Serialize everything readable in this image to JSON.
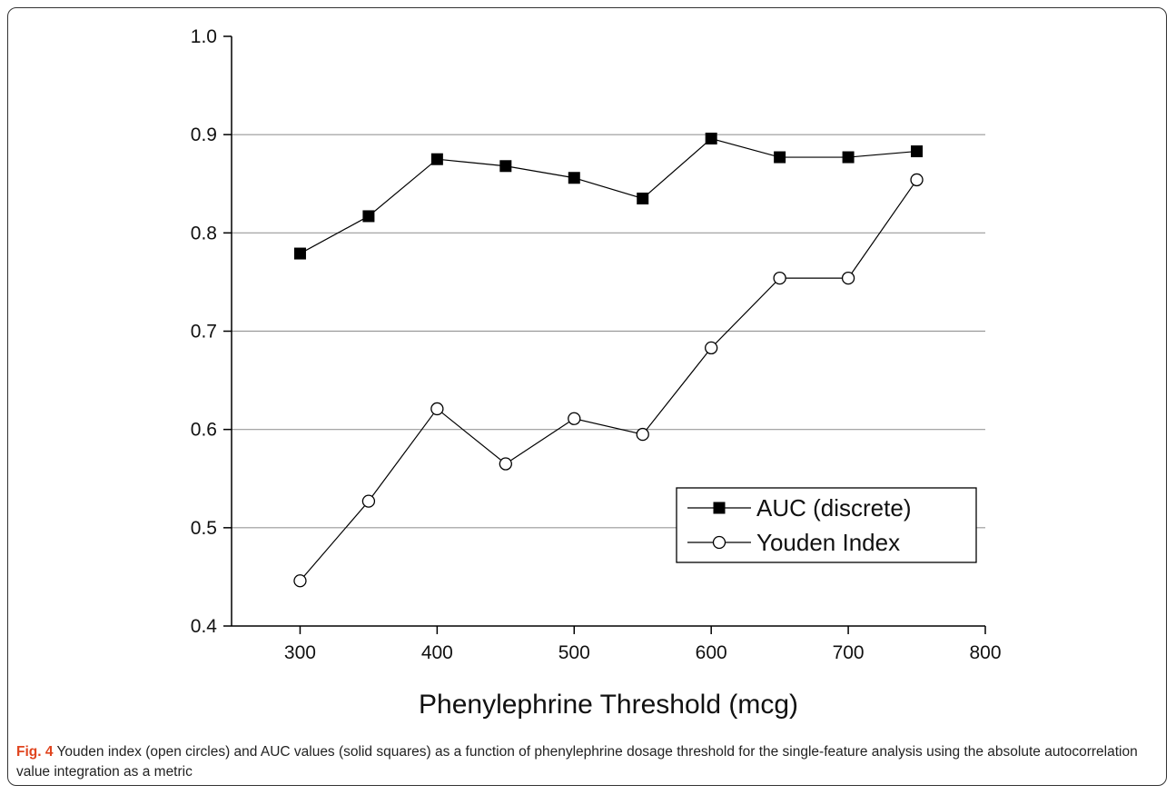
{
  "chart_data": {
    "type": "line",
    "xlabel": "Phenylephrine Threshold (mcg)",
    "x": [
      300,
      350,
      400,
      450,
      500,
      550,
      600,
      650,
      700,
      750
    ],
    "series": [
      {
        "name": "AUC (discrete)",
        "color": "#000000",
        "marker": "square",
        "values": [
          0.779,
          0.817,
          0.875,
          0.868,
          0.856,
          0.835,
          0.896,
          0.877,
          0.877,
          0.883
        ]
      },
      {
        "name": "Youden Index",
        "color": "#000000",
        "marker": "open-circle",
        "values": [
          0.446,
          0.527,
          0.621,
          0.565,
          0.611,
          0.595,
          0.683,
          0.754,
          0.754,
          0.854
        ]
      }
    ],
    "xlim": [
      250,
      800
    ],
    "xticks": [
      300,
      400,
      500,
      600,
      700,
      800
    ],
    "ylim": [
      0.4,
      1.0
    ],
    "yticks": [
      0.4,
      0.5,
      0.6,
      0.7,
      0.8,
      0.9,
      {
        "value": 1,
        "label": "1.0"
      }
    ],
    "grid": true,
    "legend": "lower right"
  },
  "caption": {
    "label": "Fig. 4",
    "text": "Youden index (open circles) and AUC values (solid squares) as a function of phenylephrine dosage threshold for the single-feature analysis using the absolute autocorrelation value integration as a metric"
  }
}
